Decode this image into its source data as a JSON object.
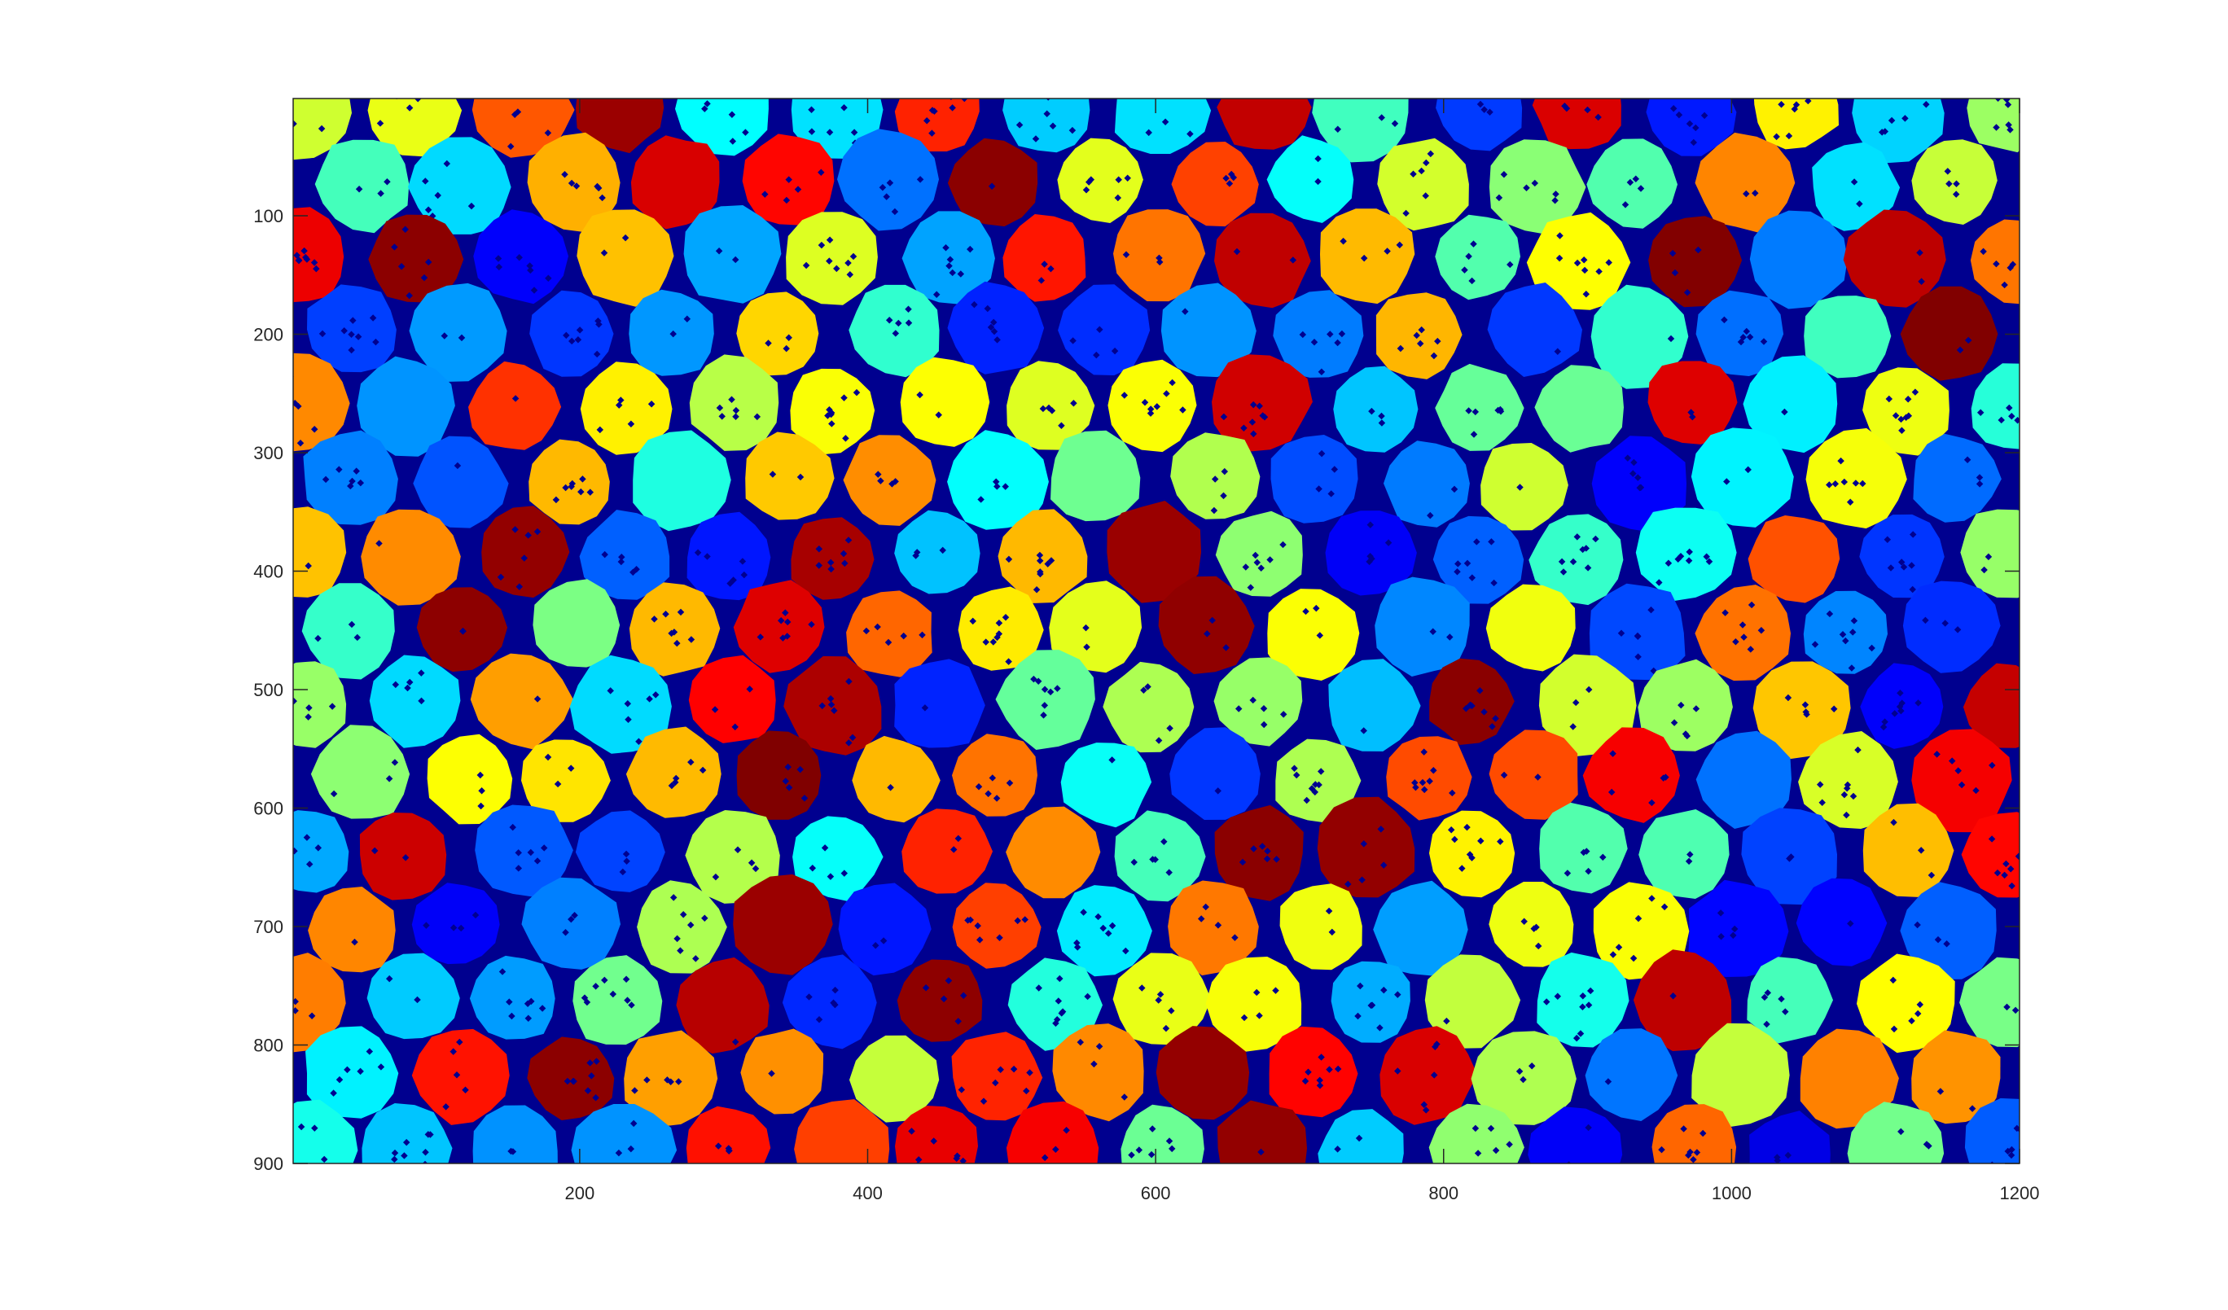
{
  "chart_data": {
    "type": "heatmap",
    "description_kind": "labeled segmentation image (image display, y-axis reversed)",
    "title": "",
    "xlabel": "",
    "ylabel": "",
    "xlim": [
      1,
      1200
    ],
    "ylim": [
      1,
      900
    ],
    "y_direction": "reverse",
    "x_ticks": [
      200,
      400,
      600,
      800,
      1000,
      1200
    ],
    "x_tick_labels": [
      "200",
      "400",
      "600",
      "800",
      "1000",
      "1200"
    ],
    "y_ticks": [
      100,
      200,
      300,
      400,
      500,
      600,
      700,
      800,
      900
    ],
    "y_tick_labels": [
      "100",
      "200",
      "300",
      "400",
      "500",
      "600",
      "700",
      "800",
      "900"
    ],
    "grid": false,
    "colormap": "jet",
    "background_color": "#00008F",
    "approx_region_count": 240,
    "approx_region_radius": 33
  }
}
